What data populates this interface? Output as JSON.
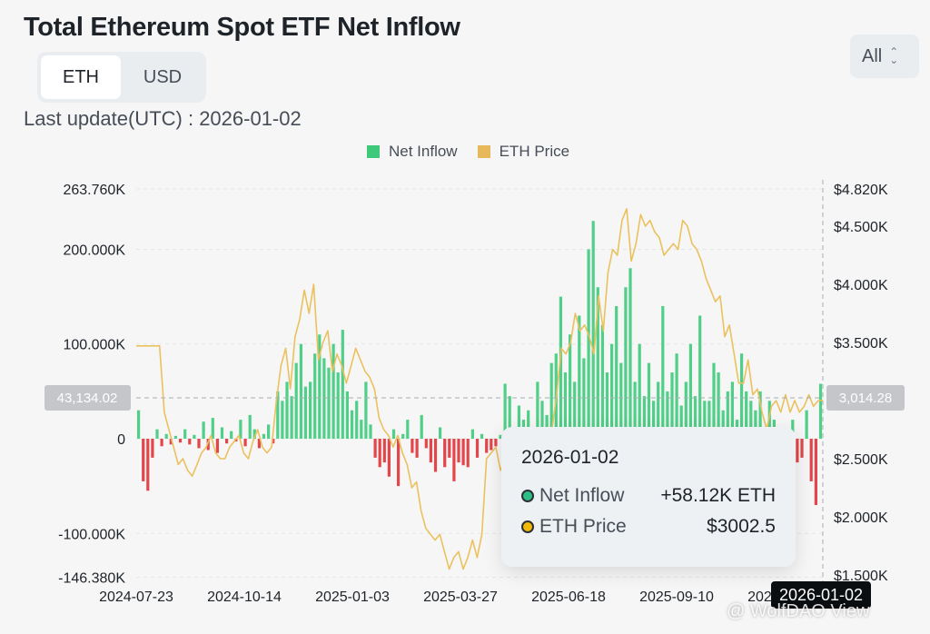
{
  "title": "Total Ethereum Spot ETF Net Inflow",
  "range_select": {
    "value": "All"
  },
  "unit_tabs": [
    {
      "label": "ETH",
      "active": true
    },
    {
      "label": "USD",
      "active": false
    }
  ],
  "last_update": "Last update(UTC) : 2026-01-02",
  "legend": [
    {
      "label": "Net Inflow",
      "color": "#2ebd85"
    },
    {
      "label": "ETH Price",
      "color": "#f0b90b"
    }
  ],
  "crosshair": {
    "left_value": "43,134.02",
    "right_value": "3,014.28",
    "date": "2026-01-02"
  },
  "tooltip": {
    "date": "2026-01-02",
    "rows": [
      {
        "label": "Net Inflow",
        "value": "+58.12K ETH",
        "dot_color": "#2ebd85"
      },
      {
        "label": "ETH Price",
        "value": "$3002.5",
        "dot_color": "#f0b90b"
      }
    ]
  },
  "watermark": "@ WolfDAO View",
  "chart_data": {
    "type": "bar",
    "x_ticks": [
      "2024-07-23",
      "2024-10-14",
      "2025-01-03",
      "2025-03-27",
      "2025-06-18",
      "2025-09-10",
      "2025-12-02"
    ],
    "left_axis": {
      "ticks": [
        "263.760K",
        "200.000K",
        "100.000K",
        "0",
        "-100.000K",
        "-146.380K"
      ],
      "ylim": [
        -146380,
        263760
      ]
    },
    "right_axis": {
      "ticks": [
        "$4.820K",
        "$4.500K",
        "$4.000K",
        "$3.500K",
        "$2.500K",
        "$2.000K",
        "$1.500K"
      ],
      "ylim": [
        1500,
        4820
      ]
    },
    "colors": {
      "inflow": "#2ebd85",
      "outflow": "#e2464a",
      "price": "#f0b90b"
    },
    "series": [
      {
        "name": "Net Inflow",
        "axis": "left",
        "values": [
          30000,
          -45000,
          -55000,
          -20000,
          10000,
          -8000,
          5000,
          -6000,
          3000,
          -4000,
          10000,
          -6000,
          4000,
          -10000,
          18000,
          -12000,
          22000,
          -15000,
          12000,
          -5000,
          8000,
          -3000,
          20000,
          -8000,
          25000,
          10000,
          -10000,
          5000,
          15000,
          -5000,
          50000,
          40000,
          60000,
          45000,
          80000,
          100000,
          55000,
          60000,
          90000,
          110000,
          85000,
          75000,
          100000,
          70000,
          115000,
          50000,
          30000,
          40000,
          20000,
          60000,
          15000,
          -20000,
          -30000,
          -25000,
          -40000,
          10000,
          -50000,
          5000,
          20000,
          -15000,
          -20000,
          25000,
          -10000,
          -25000,
          -35000,
          12000,
          -30000,
          -20000,
          -45000,
          -25000,
          -28000,
          -30000,
          10000,
          -20000,
          5000,
          -15000,
          -12000,
          -8000,
          4000,
          58000,
          45000,
          -15000,
          35000,
          20000,
          30000,
          12000,
          60000,
          40000,
          25000,
          80000,
          90000,
          150000,
          70000,
          110000,
          60000,
          130000,
          85000,
          200000,
          230000,
          160000,
          120000,
          70000,
          100000,
          140000,
          80000,
          160000,
          180000,
          60000,
          100000,
          45000,
          80000,
          40000,
          60000,
          140000,
          50000,
          70000,
          90000,
          35000,
          60000,
          100000,
          45000,
          130000,
          40000,
          40000,
          80000,
          70000,
          30000,
          50000,
          60000,
          20000,
          90000,
          50000,
          40000,
          30000,
          50000,
          -10000,
          40000,
          20000,
          -30000,
          -35000,
          -15000,
          20000,
          -25000,
          -20000,
          30000,
          -45000,
          -70000,
          58000
        ]
      },
      {
        "name": "ETH Price",
        "axis": "right",
        "values": [
          3470,
          3470,
          3470,
          3470,
          3470,
          3470,
          2900,
          2750,
          2600,
          2450,
          2500,
          2400,
          2350,
          2450,
          2550,
          2600,
          2700,
          2550,
          2500,
          2500,
          2600,
          2650,
          2700,
          2550,
          2500,
          2650,
          2750,
          2600,
          2550,
          2600,
          3000,
          3300,
          3450,
          3100,
          3550,
          3700,
          3950,
          3750,
          4000,
          3350,
          3500,
          3600,
          3250,
          3400,
          3300,
          3150,
          3300,
          3450,
          3350,
          3250,
          3200,
          3100,
          2850,
          2750,
          2700,
          2600,
          2700,
          2550,
          2450,
          2250,
          2300,
          2050,
          1900,
          1850,
          1800,
          1850,
          1700,
          1550,
          1650,
          1700,
          1550,
          1650,
          1800,
          1650,
          1850,
          2500,
          2550,
          2600,
          2400,
          2500,
          2600,
          2700,
          2500,
          2600,
          2650,
          2550,
          2450,
          2650,
          2750,
          2750,
          3050,
          3450,
          3400,
          3500,
          3750,
          3600,
          3650,
          3550,
          3400,
          3900,
          3600,
          4100,
          4300,
          4250,
          4550,
          4650,
          4200,
          4350,
          4600,
          4500,
          4550,
          4450,
          4400,
          4250,
          4300,
          4350,
          4300,
          4550,
          4500,
          4350,
          4300,
          4200,
          4050,
          3950,
          3850,
          3900,
          3550,
          3650,
          3400,
          3150,
          3150,
          3350,
          3050,
          3100,
          2900,
          2750,
          2950,
          3000,
          2900,
          3050,
          2900,
          3000,
          2900,
          2950,
          3050,
          2950,
          3000,
          3002.5
        ]
      }
    ]
  }
}
